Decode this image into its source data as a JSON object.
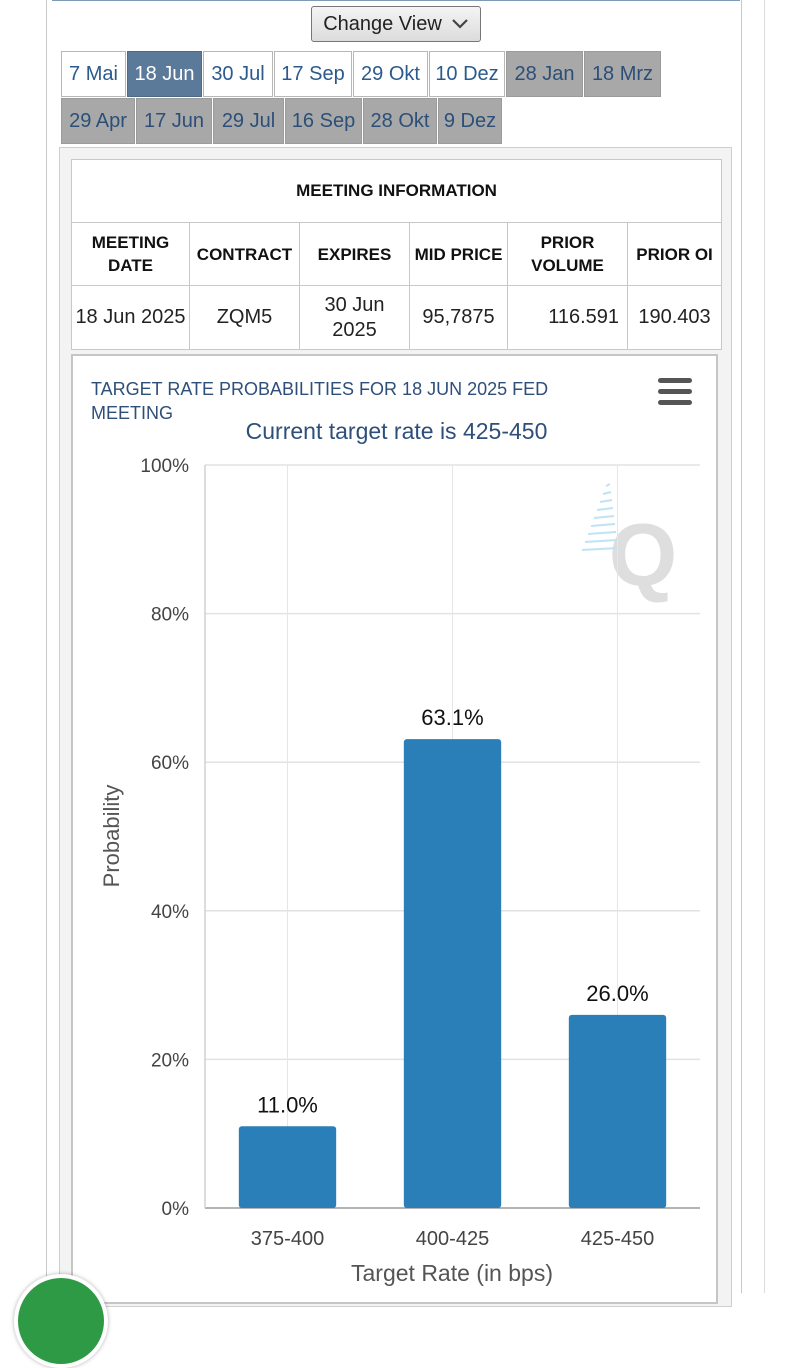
{
  "toolbar": {
    "change_view_label": "Change View"
  },
  "tabs_row1": [
    {
      "label": "7 Mai",
      "state": "normal"
    },
    {
      "label": "18 Jun",
      "state": "active"
    },
    {
      "label": "30 Jul",
      "state": "normal"
    },
    {
      "label": "17 Sep",
      "state": "normal"
    },
    {
      "label": "29 Okt",
      "state": "normal"
    },
    {
      "label": "10 Dez",
      "state": "normal"
    },
    {
      "label": "28 Jan",
      "state": "past"
    },
    {
      "label": "18 Mrz",
      "state": "past"
    }
  ],
  "tabs_row2": [
    {
      "label": "29 Apr",
      "state": "past"
    },
    {
      "label": "17 Jun",
      "state": "past"
    },
    {
      "label": "29 Jul",
      "state": "past"
    },
    {
      "label": "16 Sep",
      "state": "past"
    },
    {
      "label": "28 Okt",
      "state": "past"
    },
    {
      "label": "9 Dez",
      "state": "past"
    }
  ],
  "meeting_info": {
    "title": "MEETING INFORMATION",
    "headers": [
      "MEETING DATE",
      "CONTRACT",
      "EXPIRES",
      "MID PRICE",
      "PRIOR VOLUME",
      "PRIOR OI"
    ],
    "row": {
      "meeting_date": "18 Jun 2025",
      "contract": "ZQM5",
      "expires": "30 Jun 2025",
      "mid_price": "95,7875",
      "prior_volume": "116.591",
      "prior_oi": "190.403"
    }
  },
  "colors": {
    "bar": "#2b7fb9",
    "title_text": "#2e4f7a",
    "active_tab": "#5b7a99",
    "past_tab": "#a8a8a8"
  },
  "chart_data": {
    "type": "bar",
    "title": "TARGET RATE PROBABILITIES FOR 18 JUN 2025 FED MEETING",
    "subtitle": "Current target rate is 425-450",
    "xlabel": "Target Rate (in bps)",
    "ylabel": "Probability",
    "categories": [
      "375-400",
      "400-425",
      "425-450"
    ],
    "values": [
      11.0,
      63.1,
      26.0
    ],
    "data_labels": [
      "11.0%",
      "63.1%",
      "26.0%"
    ],
    "yticks": [
      "0%",
      "20%",
      "40%",
      "60%",
      "80%",
      "100%"
    ],
    "ylim": [
      0,
      100
    ],
    "grid": true,
    "legend": "none",
    "watermark_icon": "q-logo-icon"
  }
}
